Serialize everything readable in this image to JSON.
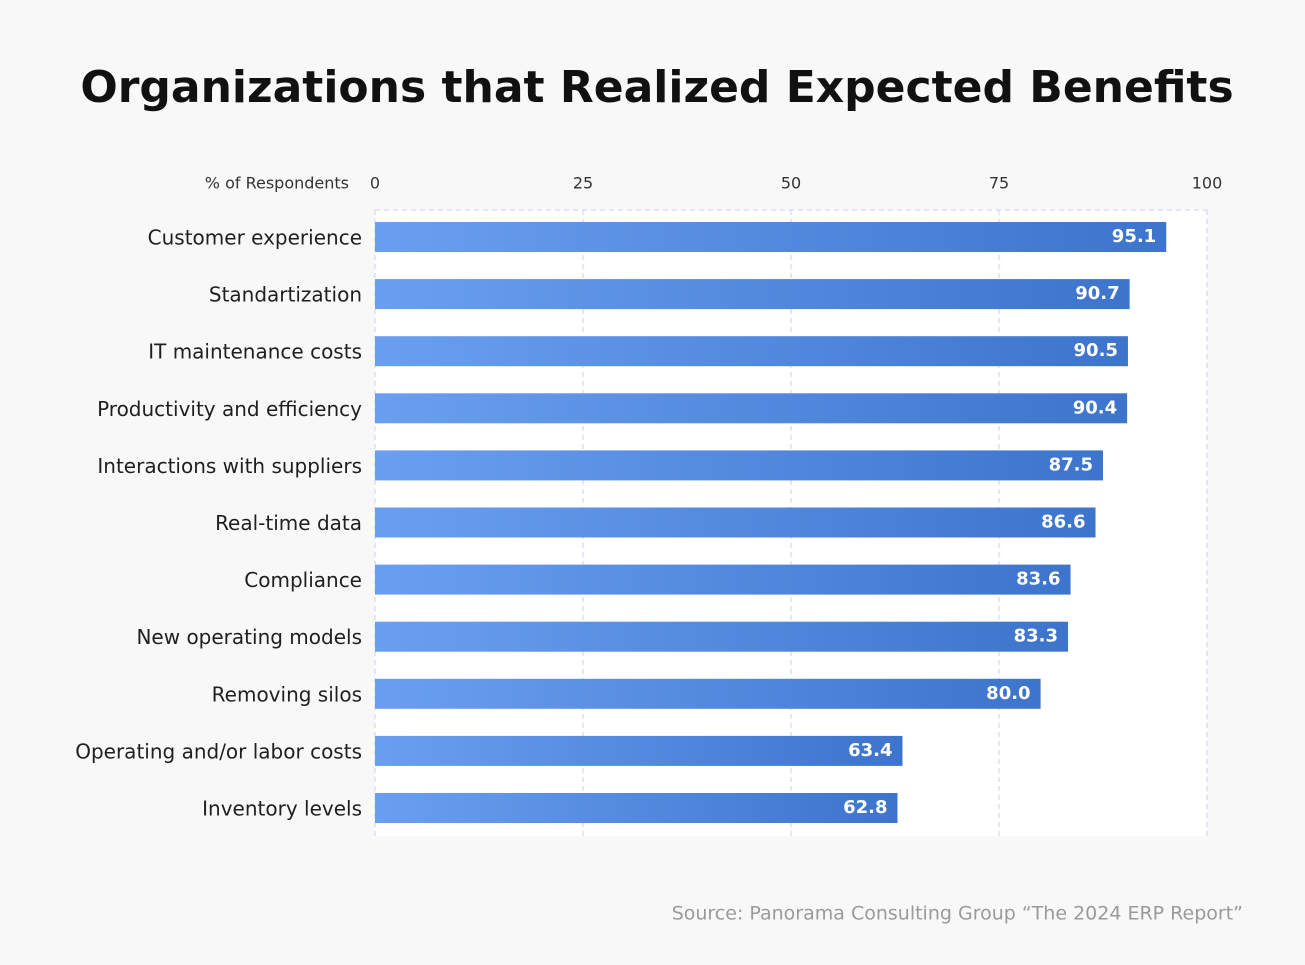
{
  "chart_data": {
    "type": "hbar",
    "title": "Organizations that Realized Expected Benefits",
    "x_label": "% of Respondents",
    "source": "Source: Panorama Consulting Group “The 2024 ERP Report”",
    "categories": [
      "Customer experience",
      "Standartization",
      "IT maintenance costs",
      "Productivity and efficiency",
      "Interactions with suppliers",
      "Real-time data",
      "Compliance",
      "New operating models",
      "Removing silos",
      "Operating and/or labor costs",
      "Inventory levels"
    ],
    "values": [
      95.1,
      90.7,
      90.5,
      90.4,
      87.5,
      86.6,
      83.6,
      83.3,
      80.0,
      63.4,
      62.8
    ],
    "value_labels": [
      "95.1",
      "90.7",
      "90.5",
      "90.4",
      "87.5",
      "86.6",
      "83.6",
      "83.3",
      "80.0",
      "63.4",
      "62.8"
    ],
    "color": "#3d74cc",
    "xlim": [
      0,
      100
    ],
    "xticks": [
      0,
      25,
      50,
      75,
      100
    ],
    "grid": true
  }
}
